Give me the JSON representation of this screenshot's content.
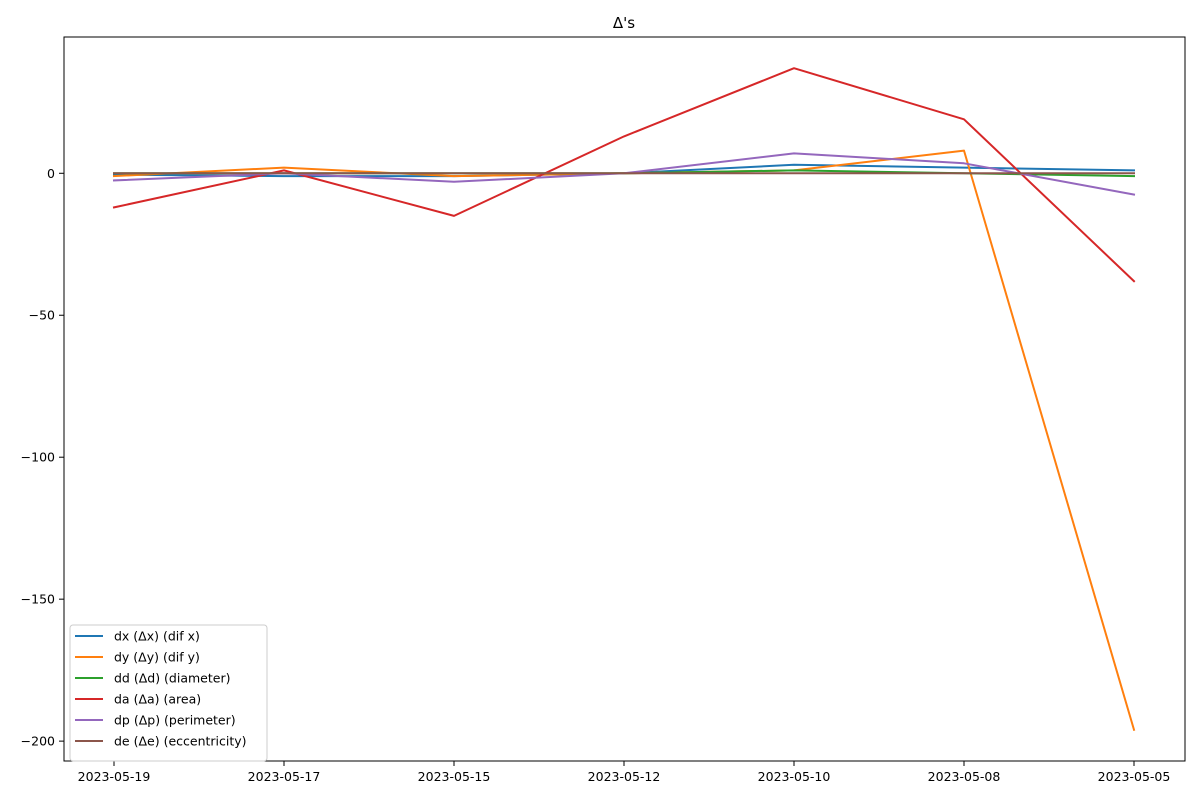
{
  "chart_data": {
    "type": "line",
    "title": "Δ's",
    "xlabel": "",
    "ylabel": "",
    "categories": [
      "2023-05-19",
      "2023-05-17",
      "2023-05-15",
      "2023-05-12",
      "2023-05-10",
      "2023-05-08",
      "2023-05-05"
    ],
    "y_ticks": [
      0,
      -50,
      -100,
      -150,
      -200
    ],
    "ylim": [
      -207,
      48
    ],
    "grid": false,
    "legend_position": "lower-left",
    "series": [
      {
        "name": "dx (Δx) (dif x)",
        "color": "#1f77b4",
        "values": [
          -0.5,
          -1,
          -1,
          0,
          3,
          2,
          1
        ]
      },
      {
        "name": "dy (Δy) (dif y)",
        "color": "#ff7f0e",
        "values": [
          -1,
          2,
          -1,
          0,
          1,
          8,
          -196
        ]
      },
      {
        "name": "dd (Δd) (diameter)",
        "color": "#2ca02c",
        "values": [
          0,
          0,
          0,
          0,
          1,
          0,
          -1
        ]
      },
      {
        "name": "da (Δa) (area)",
        "color": "#d62728",
        "values": [
          -12,
          1,
          -15,
          13,
          37,
          19,
          -38
        ]
      },
      {
        "name": "dp (Δp) (perimeter)",
        "color": "#9467bd",
        "values": [
          -2.5,
          0,
          -3,
          0,
          7,
          3.5,
          -7.5
        ]
      },
      {
        "name": "de (Δe) (eccentricity)",
        "color": "#8c564b",
        "values": [
          0,
          0,
          0,
          0,
          0,
          0,
          0
        ]
      }
    ]
  }
}
